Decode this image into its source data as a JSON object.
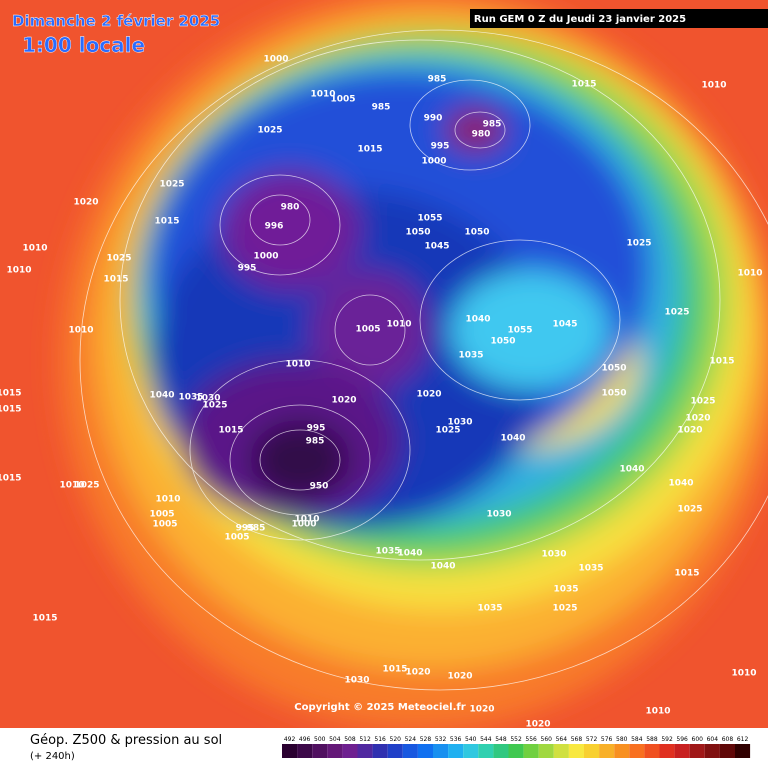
{
  "header": {
    "title": "Dimanche 2 février 2025",
    "time": "1:00 locale",
    "run": "Run GEM 0 Z du Jeudi 23 janvier 2025"
  },
  "copyright": "Copyright © 2025 Meteociel.fr",
  "legend": {
    "title": "Géop. Z500 & pression au sol",
    "lead": "(+ 240h)",
    "scale": [
      492,
      496,
      500,
      504,
      508,
      512,
      516,
      520,
      524,
      528,
      532,
      536,
      540,
      544,
      548,
      552,
      556,
      560,
      564,
      568,
      572,
      576,
      580,
      584,
      588,
      592,
      596,
      600,
      604,
      608,
      612
    ]
  },
  "isobar_labels": [
    1000,
    1010,
    1005,
    985,
    1015,
    1010,
    985,
    990,
    985,
    980,
    1025,
    1015,
    995,
    1000,
    1025,
    1020,
    1015,
    980,
    996,
    1055,
    1050,
    1050,
    1045,
    1025,
    1010,
    1025,
    1000,
    1015,
    995,
    1010,
    1010,
    1040,
    1055,
    1045,
    1005,
    1010,
    1010,
    1050,
    1035,
    1025,
    1015,
    1010,
    1050,
    1050,
    1020,
    1040,
    1035,
    1030,
    1025,
    1020,
    1015,
    1015,
    1025,
    1020,
    1020,
    1030,
    1025,
    1040,
    1015,
    995,
    985,
    1040,
    1040,
    1015,
    1010,
    1025,
    1010,
    1005,
    1005,
    1030,
    1025,
    995,
    985,
    1005,
    1000,
    1010,
    1035,
    1040,
    1030,
    1040,
    1035,
    1015,
    1035,
    1035,
    1025,
    1015,
    1015,
    1020,
    1020,
    1030,
    1010,
    1020,
    1010,
    1020,
    950
  ]
}
